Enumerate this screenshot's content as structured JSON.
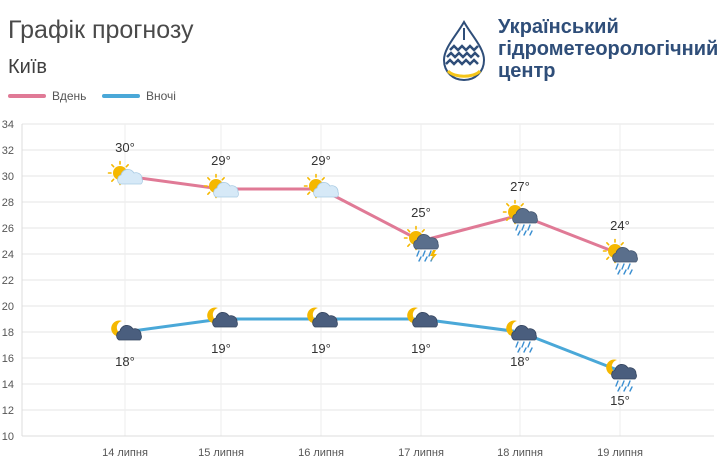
{
  "header": {
    "title": "Графік прогнозу",
    "city": "Київ"
  },
  "logo": {
    "line1": "Український",
    "line2": "гідрометеорологічний",
    "line3": "центр",
    "icon": "water-drop-logo-icon",
    "colors": {
      "blue": "#2f4e79",
      "yellow": "#f5c518"
    }
  },
  "legend": {
    "day_label": "Вдень",
    "night_label": "Вночі"
  },
  "chart_data": {
    "type": "line",
    "categories": [
      "14 липня",
      "15 липня",
      "16 липня",
      "17 липня",
      "18 липня",
      "19 липня"
    ],
    "ylim": [
      10,
      34
    ],
    "y_ticks": [
      10,
      12,
      14,
      16,
      18,
      20,
      22,
      24,
      26,
      28,
      30,
      32,
      34
    ],
    "grid": true,
    "legend_position": "top-left",
    "series": [
      {
        "name": "Вдень",
        "color": "#e07a96",
        "values": [
          30,
          29,
          29,
          25,
          27,
          24
        ],
        "labels": [
          "30°",
          "29°",
          "29°",
          "25°",
          "27°",
          "24°"
        ],
        "icons": [
          "sun-cloud-icon",
          "sun-cloud-icon",
          "sun-cloud-icon",
          "sun-thunderstorm-rain-icon",
          "sun-cloud-rain-icon",
          "sun-cloud-rain-icon"
        ]
      },
      {
        "name": "Вночі",
        "color": "#4aa8d8",
        "values": [
          18,
          19,
          19,
          19,
          18,
          15
        ],
        "labels": [
          "18°",
          "19°",
          "19°",
          "19°",
          "18°",
          "15°"
        ],
        "icons": [
          "moon-cloud-icon",
          "moon-cloud-icon",
          "moon-cloud-icon",
          "moon-cloud-icon",
          "moon-cloud-rain-icon",
          "moon-cloud-rain-icon"
        ]
      }
    ]
  }
}
